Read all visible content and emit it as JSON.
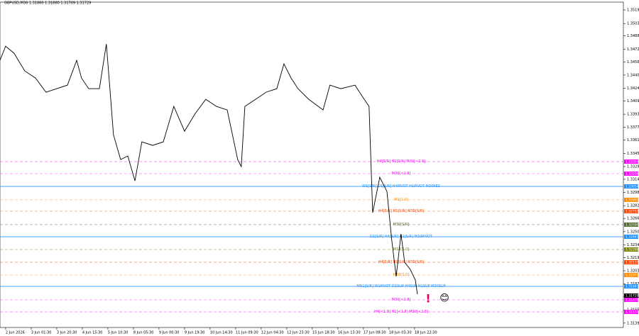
{
  "chart_data": {
    "type": "line",
    "title": "GBPUSD,M30  1.31860 1.31880 1.31709 1.31729",
    "color": "#000000",
    "x": [
      -0.22,
      0,
      0.33,
      0.75,
      1.17,
      1.58,
      2,
      2.42,
      2.78,
      2.97,
      3.25,
      3.67,
      3.94,
      4.08,
      4.22,
      4.5,
      4.78,
      5.06,
      5.33,
      5.75,
      6.17,
      6.58,
      7,
      7.42,
      7.83,
      8.25,
      8.67,
      9.08,
      9.22,
      9.36,
      9.78,
      10.19,
      10.61,
      10.89,
      11.17,
      11.44,
      11.86,
      12.42,
      12.69,
      13.11,
      13.67,
      13.94,
      14.22,
      14.36,
      14.64,
      14.92,
      15.11,
      15.28,
      15.47,
      15.61,
      15.83,
      16.03,
      16.11
    ],
    "values": [
      1.34584,
      1.34756,
      1.3467,
      1.34455,
      1.34369,
      1.34197,
      1.3424,
      1.34283,
      1.34584,
      1.34369,
      1.3424,
      1.3424,
      1.34782,
      1.3424,
      1.33681,
      1.3338,
      1.33423,
      1.33122,
      1.33595,
      1.33552,
      1.33595,
      1.34025,
      1.33724,
      1.33939,
      1.34111,
      1.34025,
      1.33982,
      1.3338,
      1.33294,
      1.34025,
      1.34111,
      1.34197,
      1.3424,
      1.34541,
      1.34369,
      1.3424,
      1.34111,
      1.33982,
      1.34283,
      1.3424,
      1.34283,
      1.34154,
      1.34025,
      1.32735,
      1.33165,
      1.32993,
      1.32391,
      1.31961,
      1.32477,
      1.32133,
      1.32047,
      1.31918,
      1.31746
    ],
    "xlim": [
      -0.22,
      24.17
    ],
    "xticks": [
      {
        "value": 0,
        "label": "2 Jun 2026"
      },
      {
        "value": 1,
        "label": "3 Jun 01:30"
      },
      {
        "value": 2,
        "label": "3 Jun 20:30"
      },
      {
        "value": 3,
        "label": "4 Jun 15:30"
      },
      {
        "value": 4,
        "label": "5 Jun 10:30"
      },
      {
        "value": 5,
        "label": "8 Jun 05:30"
      },
      {
        "value": 6,
        "label": "9 Jun 00:30"
      },
      {
        "value": 7,
        "label": "9 Jun 19:30"
      },
      {
        "value": 8,
        "label": "10 Jun 14:30"
      },
      {
        "value": 9,
        "label": "11 Jun 09:30"
      },
      {
        "value": 10,
        "label": "12 Jun 04:30"
      },
      {
        "value": 11,
        "label": "12 Jun 23:30"
      },
      {
        "value": 12,
        "label": "15 Jun 18:30"
      },
      {
        "value": 13,
        "label": "16 Jun 13:30"
      },
      {
        "value": 14,
        "label": "17 Jun 08:30"
      },
      {
        "value": 15,
        "label": "18 Jun 03:30"
      },
      {
        "value": 16,
        "label": "18 Jun 22:30"
      }
    ],
    "ylim": [
      1.31342,
      1.3529
    ],
    "yticks": [
      1.35195,
      {
        "value": 1.3503,
        "label": "1.35030"
      },
      {
        "value": 1.3488,
        "label": "1.34880"
      },
      {
        "value": 1.3472,
        "label": "1.34720"
      },
      1.34565,
      1.34405,
      1.34245,
      {
        "value": 1.3409,
        "label": "1.34090"
      },
      {
        "value": 1.3393,
        "label": "1.33930"
      },
      {
        "value": 1.3377,
        "label": "1.33770"
      },
      1.33615,
      1.33455,
      1.33295,
      {
        "value": 1.3314,
        "label": "1.33140"
      },
      {
        "value": 1.3298,
        "label": "1.32980"
      },
      {
        "value": 1.3282,
        "label": "1.32820"
      },
      1.32665,
      1.32505,
      1.32345,
      {
        "value": 1.3219,
        "label": "1.32190"
      },
      {
        "value": 1.3203,
        "label": "1.32030"
      },
      {
        "value": 1.3187,
        "label": "1.31870"
      },
      1.31715,
      1.31555,
      1.31395
    ],
    "levels": [
      {
        "value": 1.33355,
        "label": "H4[S/R] H1[S/R] M30[<2.8]",
        "tag": "1.33355",
        "color": "#ff00ff",
        "dash": true
      },
      {
        "value": 1.33209,
        "label": "M30[<1.8]",
        "tag": "1.33209",
        "color": "#ff00ff",
        "dash": true
      },
      {
        "value": 1.33054,
        "label": "W1[S/R] D1[S/R] H4PIVOT H1PIVOT M30RES",
        "tag": "1.33054",
        "color": "#1e90ff",
        "dash": false
      },
      {
        "value": 1.32891,
        "label": "M1[1.0]",
        "tag": "1.32891",
        "color": "#ff8c00",
        "dash": true
      },
      {
        "value": 1.32753,
        "label": "H4[S/R] H1[S/R] M30[S/R]",
        "tag": "1.32753",
        "color": "#ff4500",
        "dash": true
      },
      {
        "value": 1.3259,
        "label": "M30[S/R]",
        "tag": "1.32590",
        "color": "#556b2f",
        "dash": true
      },
      {
        "value": 1.32443,
        "label": "D1[S/R] H4[S/R] H1[S/R] M30PIVOT",
        "tag": "1.32443",
        "color": "#1e90ff",
        "dash": false
      },
      {
        "value": 1.32288,
        "label": "M15[1.0]",
        "tag": "1.32288",
        "color": "#808000",
        "dash": true
      },
      {
        "value": 1.32133,
        "label": "H4[S/R] H1[S/R] M30[S/R]",
        "tag": "1.32133",
        "color": "#ff4500",
        "dash": true
      },
      {
        "value": 1.31979,
        "label": "M30[1.0]",
        "tag": "1.31979",
        "color": "#ff8c00",
        "dash": true
      },
      {
        "value": 1.31841,
        "label": "MN1[S/R] W1PIVOT D1SUP H4SUP H1SUP M30SUP",
        "tag": "1.31841",
        "color": "#1e90ff",
        "dash": false
      },
      {
        "value": 1.31678,
        "label": "M30[<1.8]",
        "tag": "1.31678",
        "color": "#ff00ff",
        "dash": true
      },
      {
        "value": 1.31531,
        "label": "H4[<1.8] H1[<1.8] M30[<2.8]",
        "tag": "1.31531",
        "color": "#ff00ff",
        "dash": true
      }
    ],
    "current_price": {
      "value": 1.31729,
      "label": "1.31729"
    },
    "alert": "!",
    "icon": "😊"
  }
}
